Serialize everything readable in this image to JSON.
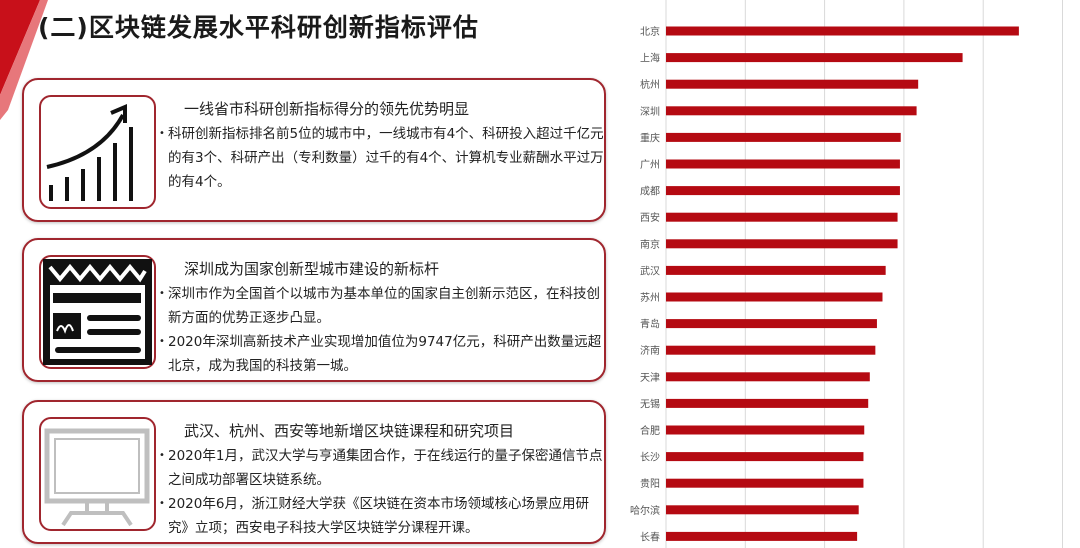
{
  "title": "(二)区块链发展水平科研创新指标评估",
  "cards": [
    {
      "icon": "growth-chart-icon",
      "heading": "一线省市科研创新指标得分的领先优势明显",
      "bullets": [
        "科研创新指标排名前5位的城市中，一线城市有4个、科研投入超过千亿元的有3个、科研产出（专利数量）过千的有4个、计算机专业薪酬水平过万的有4个。"
      ]
    },
    {
      "icon": "newspaper-icon",
      "heading": "深圳成为国家创新型城市建设的新标杆",
      "bullets": [
        "深圳市作为全国首个以城市为基本单位的国家自主创新示范区，在科技创新方面的优势正逐步凸显。",
        "2020年深圳高新技术产业实现增加值位为9747亿元，科研产出数量远超北京，成为我国的科技第一城。"
      ]
    },
    {
      "icon": "monitor-icon",
      "heading": "武汉、杭州、西安等地新增区块链课程和研究项目",
      "bullets": [
        "2020年1月，武汉大学与亨通集团合作，于在线运行的量子保密通信节点之间成功部署区块链系统。",
        "2020年6月，浙江财经大学获《区块链在资本市场领域核心场景应用研究》立项；西安电子科技大学区块链学分课程开课。"
      ]
    }
  ],
  "colors": {
    "accent": "#b50a12",
    "border": "#a0262e",
    "grid": "#d9d9d9"
  },
  "chart_data": {
    "type": "bar",
    "orientation": "horizontal",
    "title": "",
    "xlabel": "",
    "ylabel": "",
    "xlim": [
      0,
      5
    ],
    "grid": true,
    "categories": [
      "北京",
      "上海",
      "杭州",
      "深圳",
      "重庆",
      "广州",
      "成都",
      "西安",
      "南京",
      "武汉",
      "苏州",
      "青岛",
      "济南",
      "天津",
      "无锡",
      "合肥",
      "长沙",
      "贵阳",
      "哈尔滨",
      "长春"
    ],
    "values": [
      4.45,
      3.74,
      3.18,
      3.16,
      2.96,
      2.95,
      2.95,
      2.92,
      2.92,
      2.77,
      2.73,
      2.66,
      2.64,
      2.57,
      2.55,
      2.5,
      2.49,
      2.49,
      2.43,
      2.41
    ]
  }
}
